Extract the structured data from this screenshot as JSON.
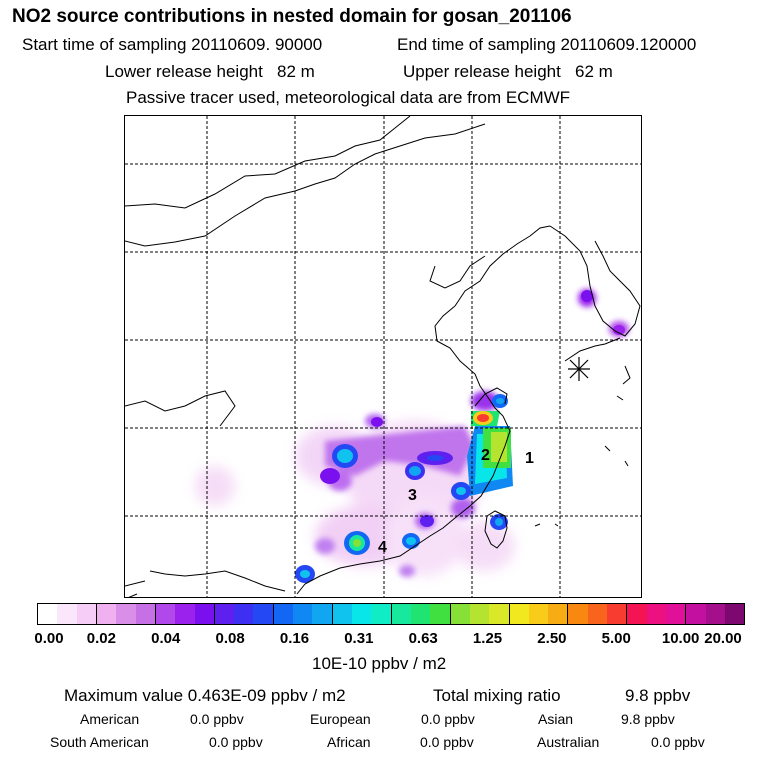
{
  "header": {
    "title": "NO2 source contributions in nested domain for gosan_201106",
    "start_label": "Start time of sampling 20110609. 90000",
    "end_label": "End time of sampling 20110609.120000",
    "lower_label": "Lower release height   82 m",
    "upper_label": "Upper release height   62 m",
    "tracer_label": "Passive tracer used, meteorological data are from ECMWF"
  },
  "map": {
    "region_labels": [
      "1",
      "2",
      "3",
      "4"
    ],
    "receptor_symbol": "star-receptor"
  },
  "colorbar": {
    "ticks": [
      "0.00",
      "0.02",
      "0.04",
      "0.08",
      "0.16",
      "0.31",
      "0.63",
      "1.25",
      "2.50",
      "5.00",
      "10.00",
      "20.00"
    ],
    "colors": [
      "#ffffff",
      "#fbe7fb",
      "#f6cdf6",
      "#efb1f0",
      "#d98ee8",
      "#c770e6",
      "#b048ea",
      "#9b22ec",
      "#7b10ee",
      "#5d20ef",
      "#3d30f2",
      "#2448f4",
      "#1467f4",
      "#1088f4",
      "#10a6f2",
      "#10c3ef",
      "#08e6ea",
      "#10ecc6",
      "#18e89e",
      "#20e472",
      "#40e040",
      "#86e038",
      "#b4e430",
      "#dae828",
      "#f2e820",
      "#f8cc18",
      "#f8ac14",
      "#f88810",
      "#f8641c",
      "#f83c30",
      "#f41454",
      "#ec1080",
      "#e01098",
      "#c410a0",
      "#a4108c",
      "#7c0870"
    ],
    "unit_label": "10E-10 ppbv / m2"
  },
  "summary": {
    "max_label": "Maximum value  0.463E-09 ppbv / m2",
    "total_label": "Total mixing ratio",
    "total_value": "9.8 ppbv",
    "regions": [
      {
        "name": "American",
        "value": "0.0 ppbv"
      },
      {
        "name": "European",
        "value": "0.0 ppbv"
      },
      {
        "name": "Asian",
        "value": "9.8 ppbv"
      },
      {
        "name": "South American",
        "value": "0.0 ppbv"
      },
      {
        "name": "African",
        "value": "0.0 ppbv"
      },
      {
        "name": "Australian",
        "value": "0.0 ppbv"
      }
    ]
  }
}
